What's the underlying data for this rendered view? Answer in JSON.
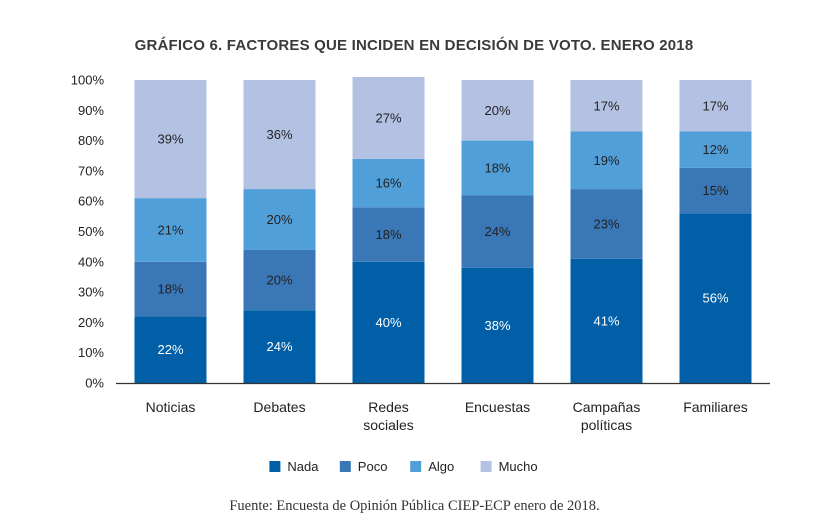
{
  "chart_data": {
    "type": "bar",
    "stacked": true,
    "title": "GRÁFICO 6. FACTORES QUE INCIDEN EN DECISIÓN DE VOTO. ENERO 2018",
    "xlabel": "",
    "ylabel": "",
    "ylim": [
      0,
      100
    ],
    "yticks": [
      "0%",
      "10%",
      "20%",
      "30%",
      "40%",
      "50%",
      "60%",
      "70%",
      "80%",
      "90%",
      "100%"
    ],
    "categories": [
      "Noticias",
      "Debates",
      "Redes sociales",
      "Encuestas",
      "Campañas políticas",
      "Familiares"
    ],
    "category_lines": [
      [
        "Noticias"
      ],
      [
        "Debates"
      ],
      [
        "Redes",
        "sociales"
      ],
      [
        "Encuestas"
      ],
      [
        "Campañas",
        "políticas"
      ],
      [
        "Familiares"
      ]
    ],
    "series": [
      {
        "name": "Nada",
        "color": "#005fa6",
        "label_color": "#ffffff",
        "values": [
          22,
          24,
          40,
          38,
          41,
          56
        ]
      },
      {
        "name": "Poco",
        "color": "#3a77b6",
        "label_color": "#222222",
        "values": [
          18,
          20,
          18,
          24,
          23,
          15
        ]
      },
      {
        "name": "Algo",
        "color": "#519fd9",
        "label_color": "#222222",
        "values": [
          21,
          20,
          16,
          18,
          19,
          12
        ]
      },
      {
        "name": "Mucho",
        "color": "#b3c2e2",
        "label_color": "#222222",
        "values": [
          39,
          36,
          27,
          20,
          17,
          17
        ]
      }
    ],
    "legend_position": "bottom",
    "grid": false
  },
  "source": "Fuente: Encuesta de Opinión Pública CIEP-ECP enero de 2018."
}
